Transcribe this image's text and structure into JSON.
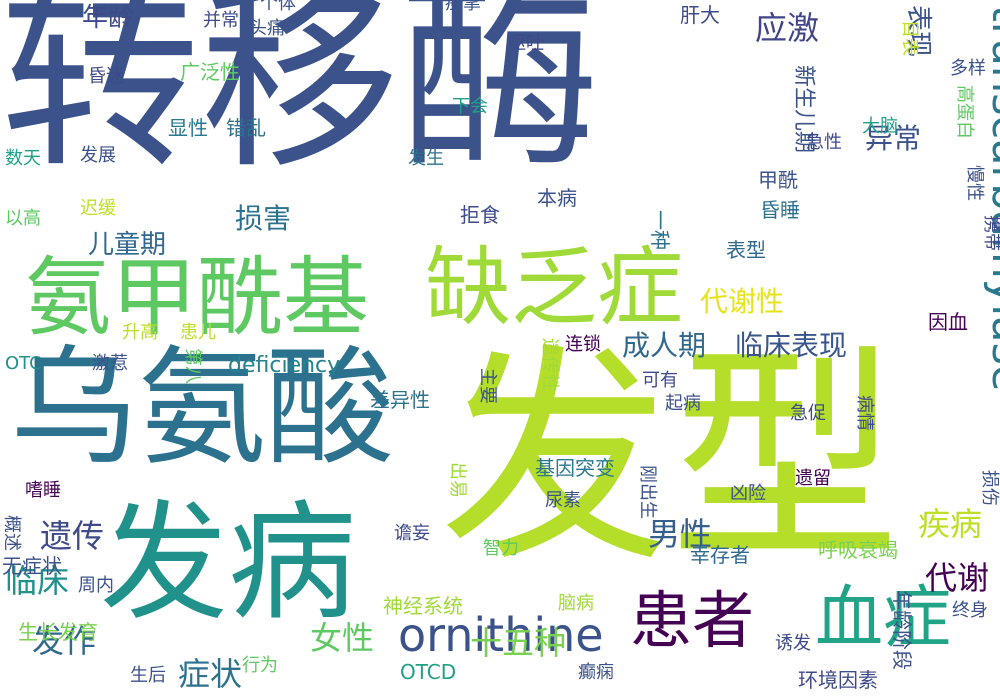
{
  "words": [
    {
      "text": "转移酶",
      "color": "#3b528b"
    },
    {
      "text": "发型",
      "color": "#b5de2b"
    },
    {
      "text": "乌氨酸",
      "color": "#2c728e"
    },
    {
      "text": "发病",
      "color": "#21918c"
    },
    {
      "text": "缺乏症",
      "color": "#a0da39"
    },
    {
      "text": "氨甲酰基",
      "color": "#5ec962"
    },
    {
      "text": "血症",
      "color": "#20a386"
    },
    {
      "text": "患者",
      "color": "#440154"
    },
    {
      "text": "ornithine",
      "color": "#3b528b"
    },
    {
      "text": "transcarbamylase",
      "color": "#2a788e"
    },
    {
      "text": "临床表现",
      "color": "#39568c"
    },
    {
      "text": "成人期",
      "color": "#31688e"
    },
    {
      "text": "代谢性",
      "color": "#e6e419"
    },
    {
      "text": "遗传",
      "color": "#3e4a89"
    },
    {
      "text": "临床",
      "color": "#21918c"
    },
    {
      "text": "疾病",
      "color": "#bddf26"
    },
    {
      "text": "男性",
      "color": "#355f8d"
    },
    {
      "text": "代谢",
      "color": "#440154"
    },
    {
      "text": "发作",
      "color": "#31688e"
    },
    {
      "text": "症状",
      "color": "#2c728e"
    },
    {
      "text": "女性",
      "color": "#5ec962"
    },
    {
      "text": "十五种",
      "color": "#7ad151"
    },
    {
      "text": "损害",
      "color": "#2c728e"
    },
    {
      "text": "应激",
      "color": "#414487"
    },
    {
      "text": "异常",
      "color": "#3b528b"
    },
    {
      "text": "年龄",
      "color": "#3e4a89"
    },
    {
      "text": "表现",
      "color": "#3b528b"
    },
    {
      "text": "儿童期",
      "color": "#31688e"
    },
    {
      "text": "deficiency",
      "color": "#26828e"
    },
    {
      "text": "新生儿期",
      "color": "#3b528b"
    },
    {
      "text": "年龄阶段",
      "color": "#3b528b"
    },
    {
      "text": "基因突变",
      "color": "#2a788e"
    },
    {
      "text": "呼吸衰竭",
      "color": "#7ad151"
    },
    {
      "text": "幸存者",
      "color": "#31688e"
    },
    {
      "text": "环境因素",
      "color": "#3e4a89"
    },
    {
      "text": "神经系统",
      "color": "#a0da39"
    },
    {
      "text": "生长发育",
      "color": "#7ad151"
    },
    {
      "text": "无症状",
      "color": "#3b528b"
    },
    {
      "text": "OTCD",
      "color": "#1fa187"
    },
    {
      "text": "差异性",
      "color": "#2c728e"
    },
    {
      "text": "肝大",
      "color": "#3e4a89"
    },
    {
      "text": "甲酰",
      "color": "#3b528b"
    },
    {
      "text": "昏睡",
      "color": "#2c728e"
    },
    {
      "text": "表型",
      "color": "#31688e"
    },
    {
      "text": "因血",
      "color": "#440154"
    },
    {
      "text": "拒食",
      "color": "#3e4a89"
    },
    {
      "text": "本病",
      "color": "#3b528b"
    },
    {
      "text": "一种",
      "color": "#2c728e"
    },
    {
      "text": "广泛性",
      "color": "#5ec962"
    },
    {
      "text": "显性",
      "color": "#2a788e"
    },
    {
      "text": "错乱",
      "color": "#2c728e"
    },
    {
      "text": "昏迷",
      "color": "#3e4a89"
    },
    {
      "text": "头痛",
      "color": "#3b528b"
    },
    {
      "text": "并常",
      "color": "#3e4a89"
    },
    {
      "text": "个体",
      "color": "#3b528b"
    },
    {
      "text": "痉挛",
      "color": "#3b528b"
    },
    {
      "text": "呕吐",
      "color": "#3e4a89"
    },
    {
      "text": "多样",
      "color": "#3b528b"
    },
    {
      "text": "下会",
      "color": "#1fa187"
    },
    {
      "text": "发生",
      "color": "#2c728e"
    },
    {
      "text": "发展",
      "color": "#3b528b"
    },
    {
      "text": "数天",
      "color": "#1fa187"
    },
    {
      "text": "迟缓",
      "color": "#bddf26"
    },
    {
      "text": "以高",
      "color": "#5ec962"
    },
    {
      "text": "升高",
      "color": "#bddf26"
    },
    {
      "text": "患儿",
      "color": "#bddf26"
    },
    {
      "text": "第八",
      "color": "#5ec962"
    },
    {
      "text": "OTC",
      "color": "#21918c"
    },
    {
      "text": "激惹",
      "color": "#3b528b"
    },
    {
      "text": "主要",
      "color": "#3b528b"
    },
    {
      "text": "遗传性",
      "color": "#a0da39"
    },
    {
      "text": "连锁",
      "color": "#440154"
    },
    {
      "text": "可有",
      "color": "#3e4a89"
    },
    {
      "text": "起病",
      "color": "#3b528b"
    },
    {
      "text": "病情",
      "color": "#3e4a89"
    },
    {
      "text": "急促",
      "color": "#3e4a89"
    },
    {
      "text": "出易",
      "color": "#a0da39"
    },
    {
      "text": "刚出生",
      "color": "#3b528b"
    },
    {
      "text": "凶险",
      "color": "#3b528b"
    },
    {
      "text": "遗留",
      "color": "#440154"
    },
    {
      "text": "损伤",
      "color": "#3b528b"
    },
    {
      "text": "嗜睡",
      "color": "#440154"
    },
    {
      "text": "谵妄",
      "color": "#3e4a89"
    },
    {
      "text": "尿素",
      "color": "#3b528b"
    },
    {
      "text": "概述",
      "color": "#3b528b"
    },
    {
      "text": "智力",
      "color": "#5ec962"
    },
    {
      "text": "周内",
      "color": "#3b528b"
    },
    {
      "text": "脑病",
      "color": "#a0da39"
    },
    {
      "text": "终身",
      "color": "#3b528b"
    },
    {
      "text": "诱发",
      "color": "#3e4a89"
    },
    {
      "text": "生后",
      "color": "#3b528b"
    },
    {
      "text": "行为",
      "color": "#5ec962"
    },
    {
      "text": "癫痫",
      "color": "#3b528b"
    },
    {
      "text": "目表",
      "color": "#bddf26"
    },
    {
      "text": "高蛋白",
      "color": "#5ec962"
    },
    {
      "text": "大脑",
      "color": "#1fa187"
    },
    {
      "text": "急性",
      "color": "#3e4a89"
    },
    {
      "text": "慢性",
      "color": "#3b528b"
    },
    {
      "text": "携带",
      "color": "#3e4a89"
    }
  ]
}
